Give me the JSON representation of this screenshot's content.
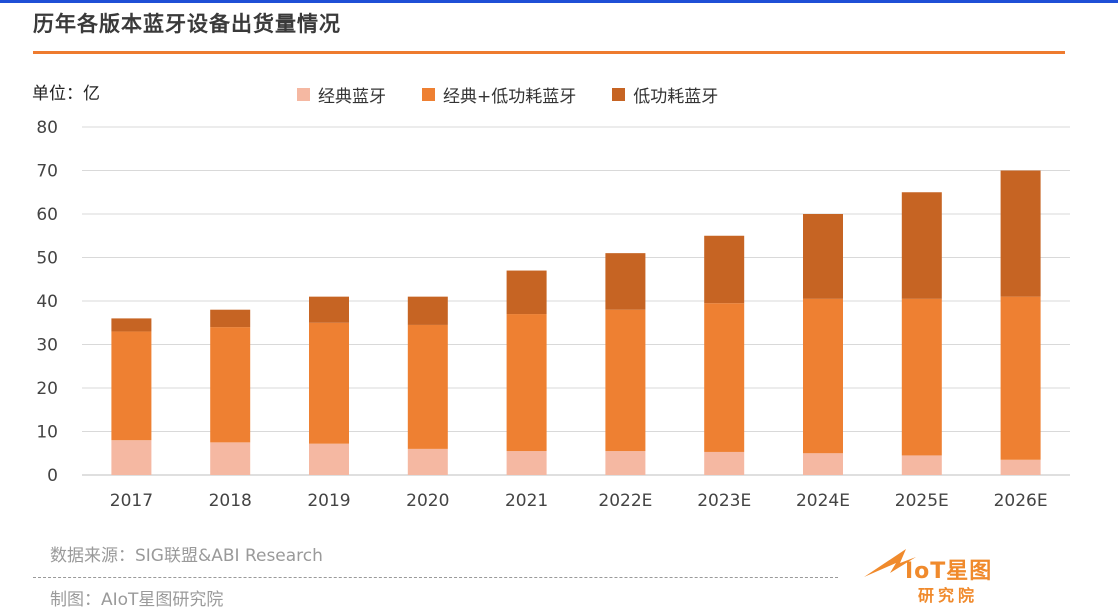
{
  "header": {
    "title": "历年各版本蓝牙设备出货量情况",
    "unit_label": "单位：亿"
  },
  "chart_data": {
    "type": "bar",
    "stacked": true,
    "categories": [
      "2017",
      "2018",
      "2019",
      "2020",
      "2021",
      "2022E",
      "2023E",
      "2024E",
      "2025E",
      "2026E"
    ],
    "series": [
      {
        "name": "经典蓝牙",
        "color": "#f5b8a2",
        "values": [
          8,
          7.5,
          7.2,
          6,
          5.5,
          5.5,
          5.3,
          5,
          4.5,
          3.5
        ]
      },
      {
        "name": "经典+低功耗蓝牙",
        "color": "#ee8032",
        "values": [
          25,
          26.5,
          27.8,
          28.5,
          31.5,
          32.5,
          34.2,
          35.5,
          36,
          37.5
        ]
      },
      {
        "name": "低功耗蓝牙",
        "color": "#c66423",
        "values": [
          3,
          4,
          6,
          6.5,
          10,
          13,
          15.5,
          19.5,
          24.5,
          29
        ]
      }
    ],
    "ylim": [
      0,
      80
    ],
    "yticks": [
      "0",
      "10",
      "20",
      "30",
      "40",
      "50",
      "60",
      "70",
      "80"
    ],
    "grid": true,
    "legend_position": "top"
  },
  "footer": {
    "source": "数据来源：SIG联盟&ABI Research",
    "maker": "制图：AIoT星图研究院"
  },
  "logo": {
    "brand": "IoT星图",
    "sub": "研究院"
  }
}
